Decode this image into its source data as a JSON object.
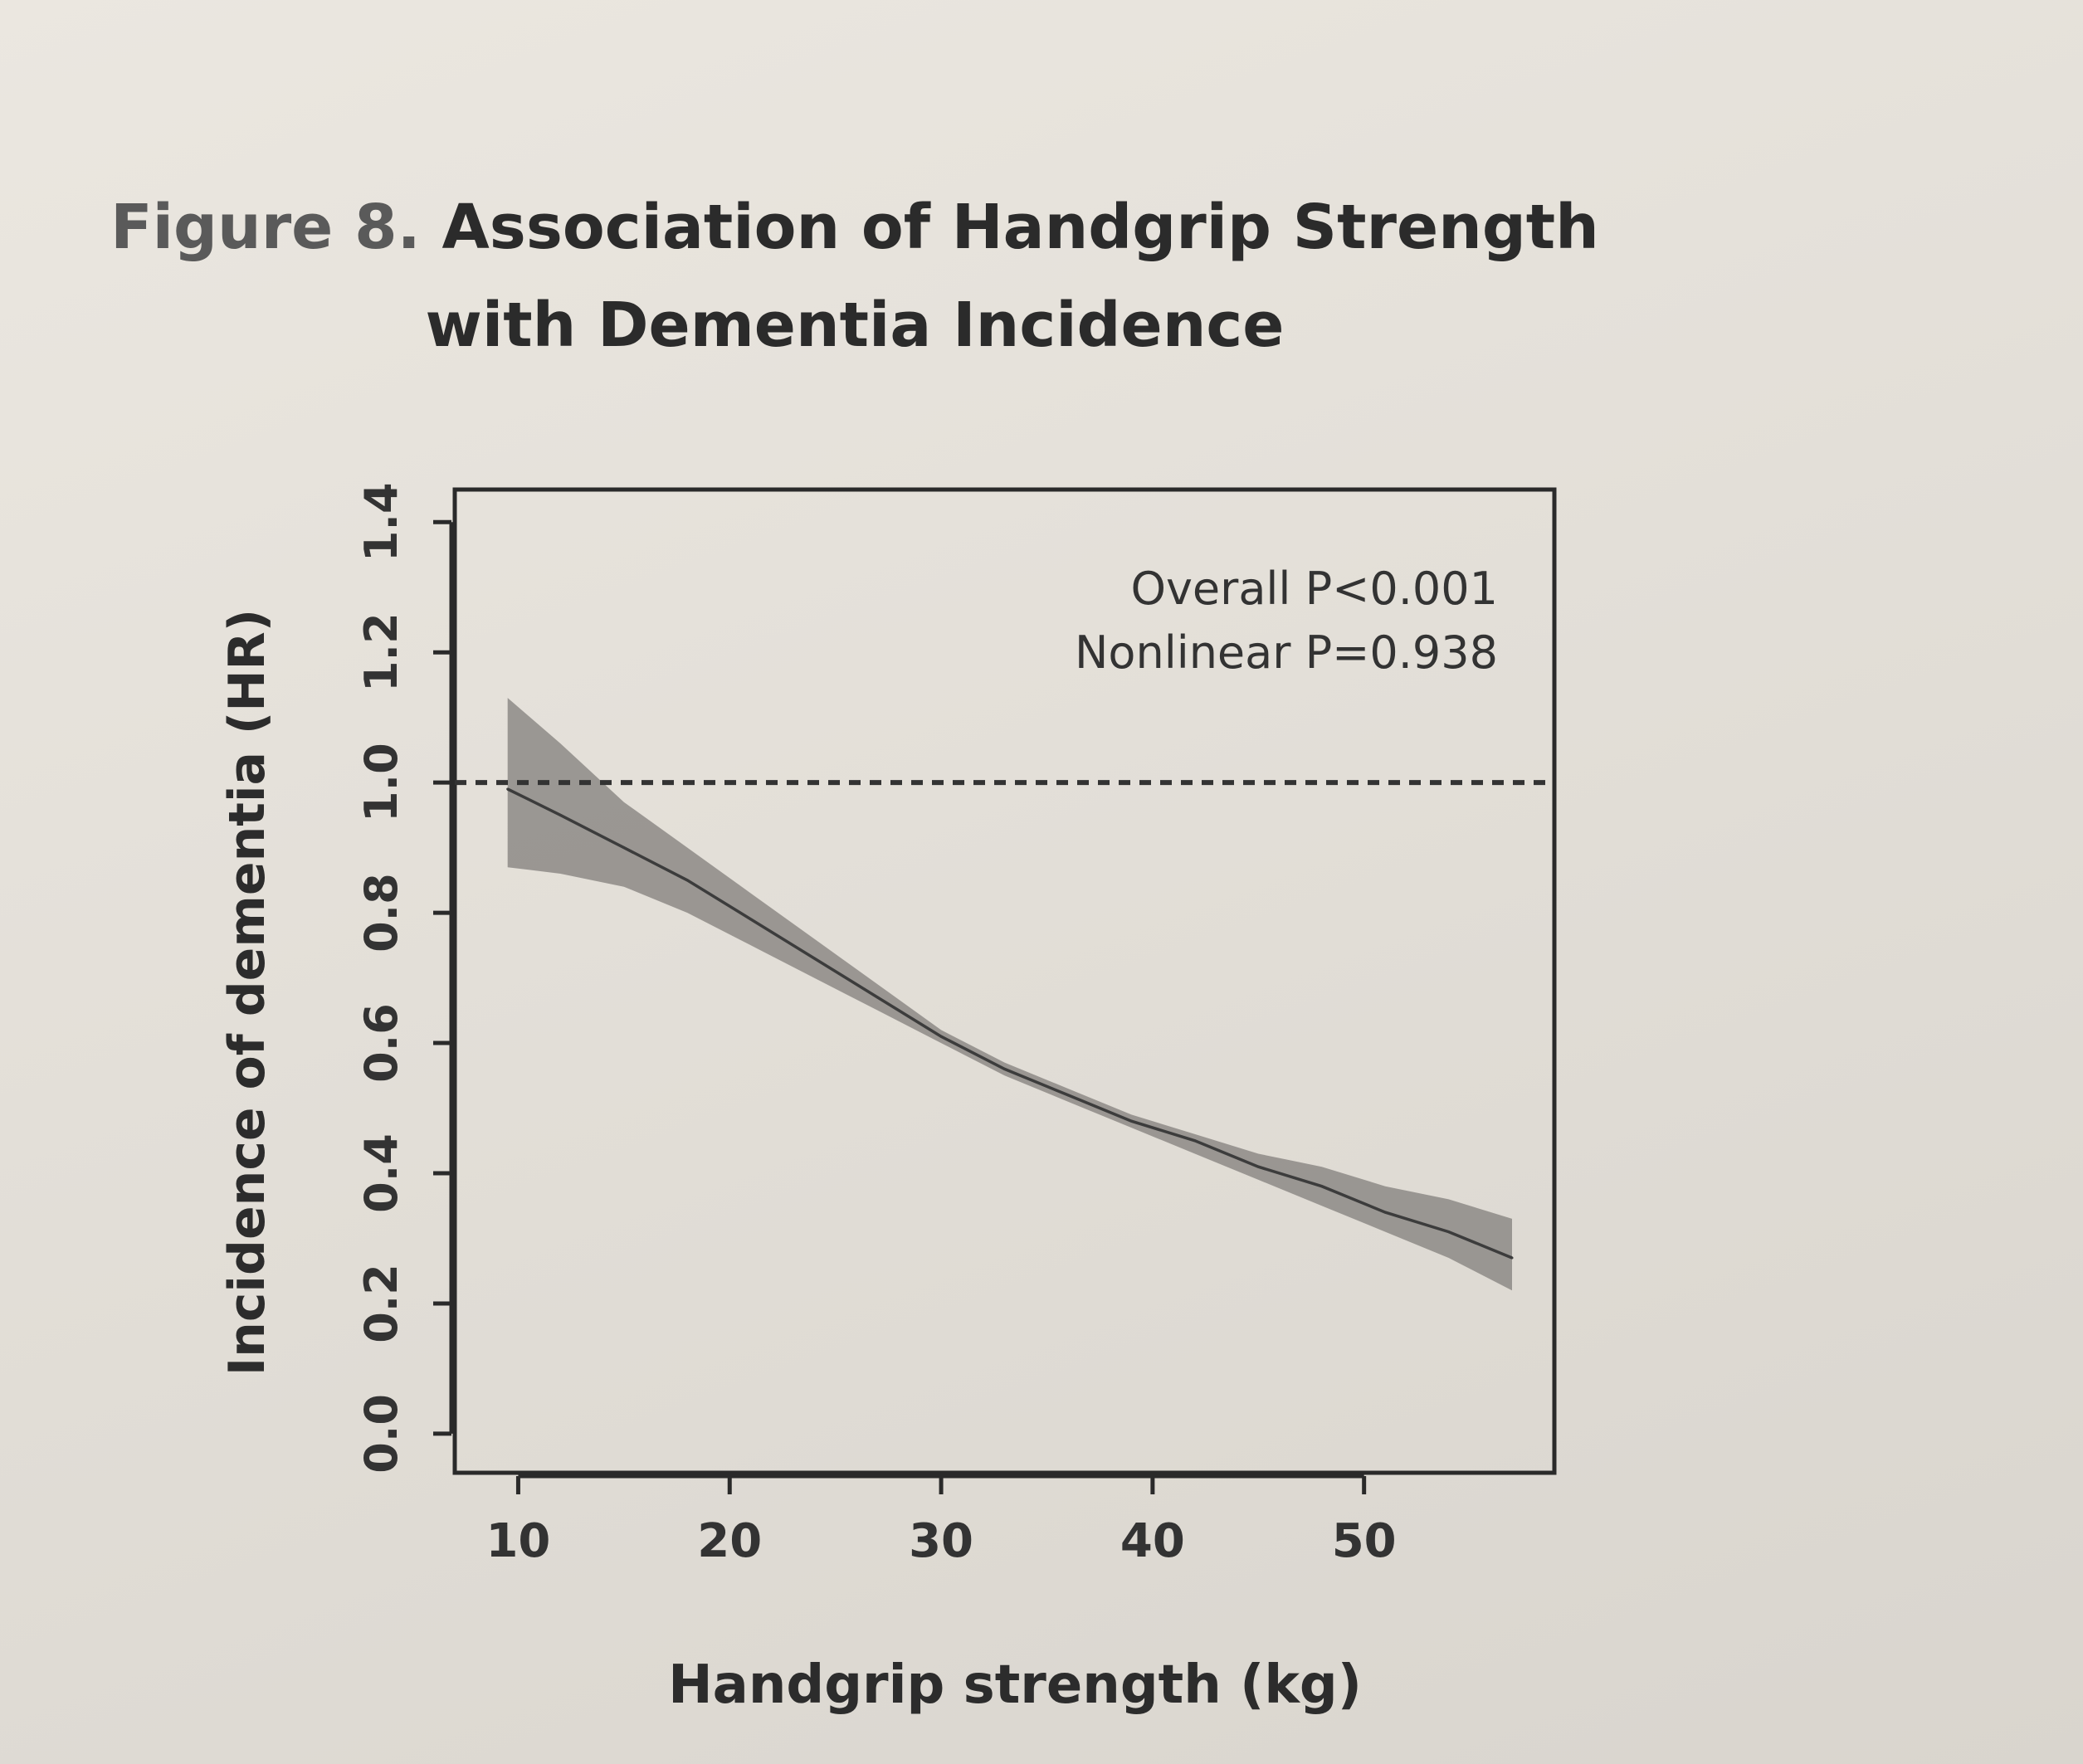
{
  "figure": {
    "label": "Figure 8.",
    "title_line1": "Association of Handgrip Strength",
    "title_line2": "with Dementia Incidence"
  },
  "chart_data": {
    "type": "line",
    "xlabel": "Handgrip strength (kg)",
    "ylabel": "Incidence of dementia (HR)",
    "xlim": [
      7,
      59
    ],
    "ylim": [
      -0.06,
      1.45
    ],
    "x_ticks": [
      10,
      20,
      30,
      40,
      50
    ],
    "y_ticks": [
      0.0,
      0.2,
      0.4,
      0.6,
      0.8,
      1.0,
      1.2,
      1.4
    ],
    "x_tick_labels": [
      "10",
      "20",
      "30",
      "40",
      "50"
    ],
    "y_tick_labels": [
      "0.0",
      "0.2",
      "0.4",
      "0.6",
      "0.8",
      "1.0",
      "1.2",
      "1.4"
    ],
    "reference_line": {
      "y": 1.0,
      "style": "dashed"
    },
    "annotations": [
      "Overall P<0.001",
      "Nonlinear P=0.938"
    ],
    "grid": false,
    "series": [
      {
        "x": [
          9.5,
          12,
          15,
          18,
          21,
          24,
          27,
          30,
          33,
          36,
          39,
          42,
          45,
          48,
          51,
          54,
          57
        ],
        "y": [
          0.99,
          0.95,
          0.9,
          0.85,
          0.79,
          0.73,
          0.67,
          0.61,
          0.56,
          0.52,
          0.48,
          0.45,
          0.41,
          0.38,
          0.34,
          0.31,
          0.27
        ],
        "lower": [
          0.87,
          0.86,
          0.84,
          0.8,
          0.75,
          0.7,
          0.65,
          0.6,
          0.55,
          0.51,
          0.47,
          0.43,
          0.39,
          0.35,
          0.31,
          0.27,
          0.22
        ],
        "upper": [
          1.13,
          1.06,
          0.97,
          0.9,
          0.83,
          0.76,
          0.69,
          0.62,
          0.57,
          0.53,
          0.49,
          0.46,
          0.43,
          0.41,
          0.38,
          0.36,
          0.33
        ]
      }
    ],
    "colors": {
      "line": "#3c3c3c",
      "band": "#8d8a86",
      "reference": "#333333",
      "axis": "#2a2a2a"
    }
  }
}
